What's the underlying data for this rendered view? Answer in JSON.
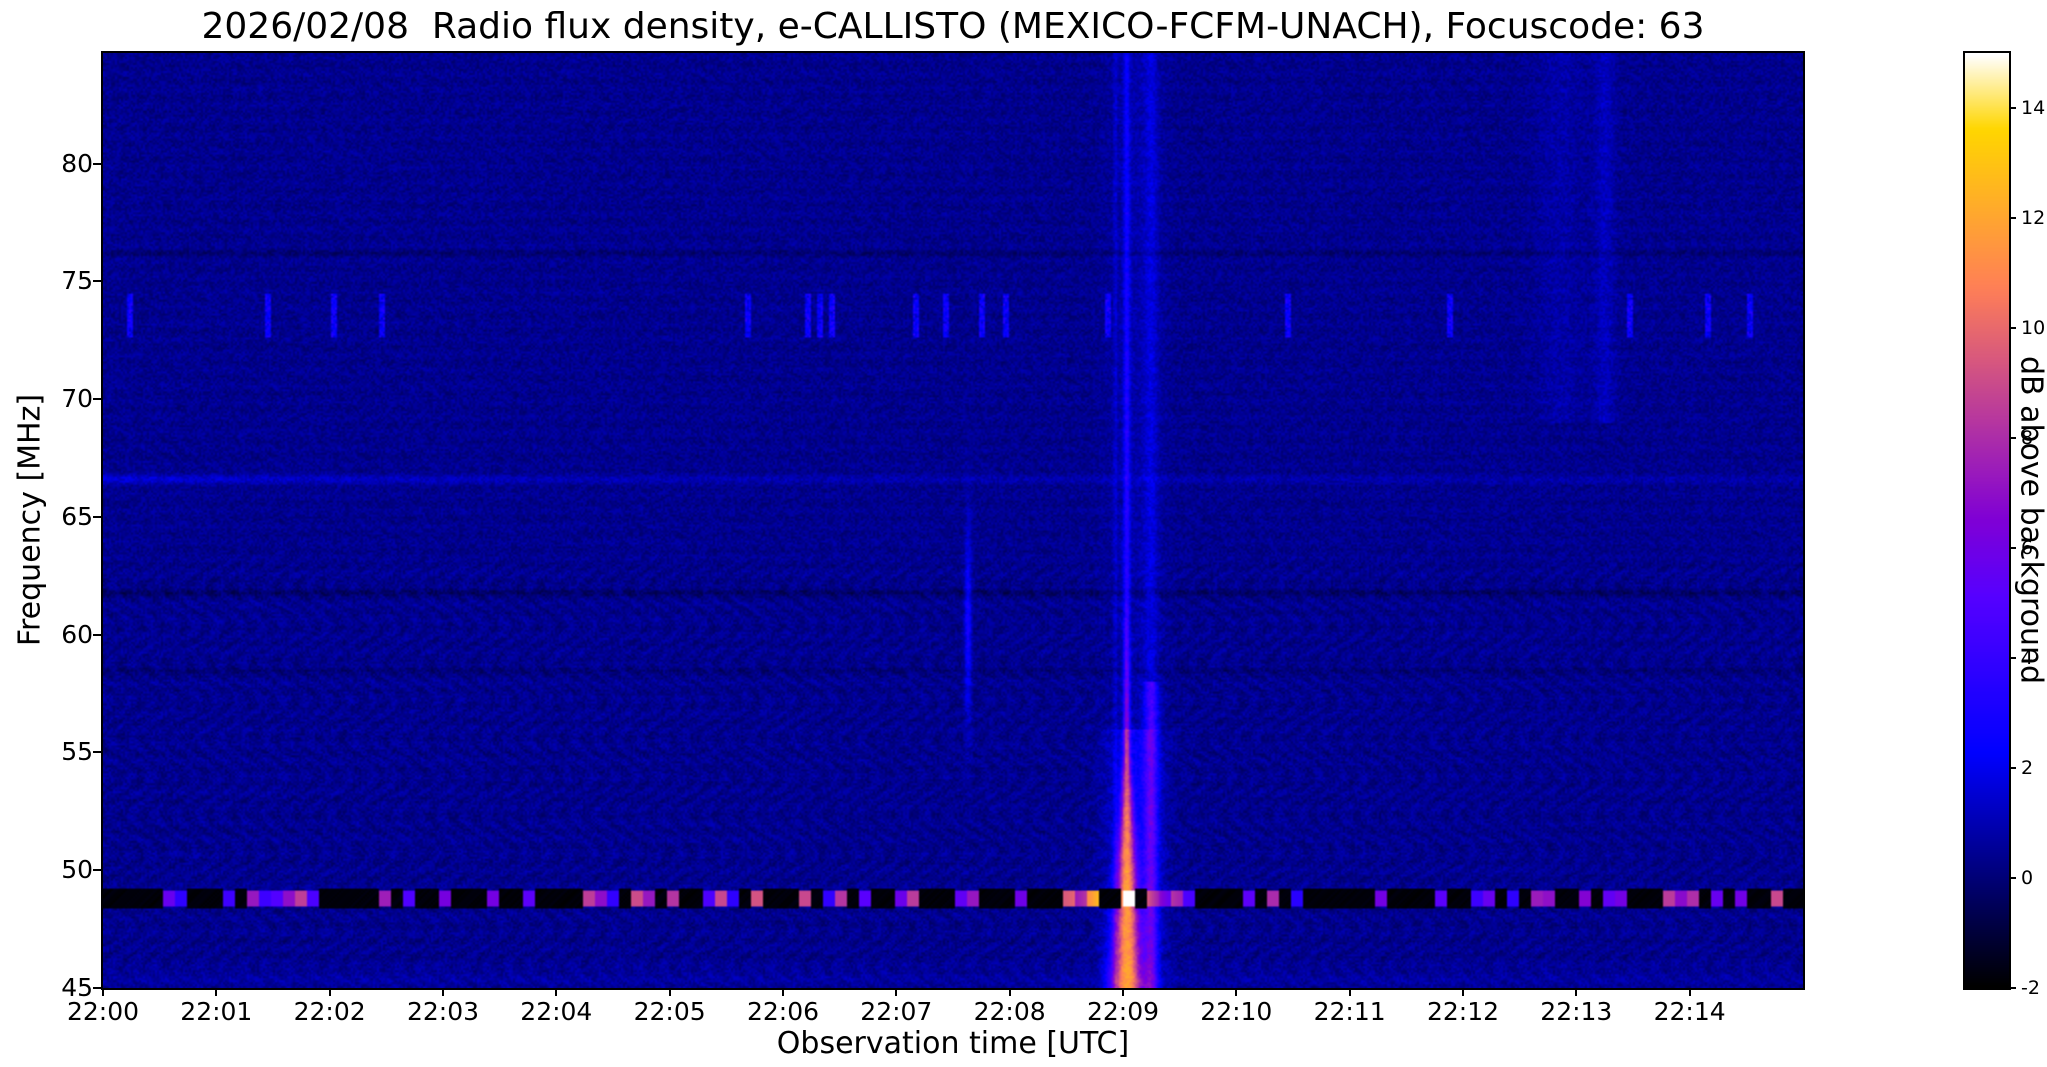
{
  "chart_data": {
    "type": "heatmap",
    "title": "2026/02/08  Radio flux density, e-CALLISTO (MEXICO-FCFM-UNACH), Focuscode: 63",
    "xlabel": "Observation time [UTC]",
    "ylabel": "Frequency [MHz]",
    "colorbar_label": "dB above background",
    "colormap": "gnuplot2",
    "x_start_utc": "22:00:00",
    "x_end_utc": "22:15:00",
    "x_ticks": [
      "22:00",
      "22:01",
      "22:02",
      "22:03",
      "22:04",
      "22:05",
      "22:06",
      "22:07",
      "22:08",
      "22:09",
      "22:10",
      "22:11",
      "22:12",
      "22:13",
      "22:14"
    ],
    "y_ticks": [
      45,
      50,
      55,
      60,
      65,
      70,
      75,
      80
    ],
    "freq_range_mhz": [
      45,
      84.7
    ],
    "value_range_db": [
      -2,
      15
    ],
    "colorbar_ticks": [
      -2,
      0,
      2,
      4,
      6,
      8,
      10,
      12,
      14
    ],
    "background_db": 0.3,
    "features": [
      {
        "name": "rfi-channel",
        "kind": "horizontal-dashed-line",
        "freq_mhz": 48.8,
        "width_mhz": 0.8,
        "dark_db": -2,
        "bright_db_range": [
          3.5,
          10
        ],
        "note": "intermittent channel: black dropouts alternating with bright orange bursts across the full time axis"
      },
      {
        "name": "solar-radio-burst",
        "kind": "vertical-burst",
        "time_utc": "22:09:02",
        "freq_span_mhz": [
          45,
          78
        ],
        "peak_db_at_45mhz": 10,
        "peak_db_at_70mhz": 2.5,
        "note": "strong narrow column, brightest (orange/pink) below 52 MHz, fading to blue above 65 MHz"
      },
      {
        "name": "secondary-burst",
        "kind": "vertical-burst",
        "time_utc": "22:09:15",
        "freq_span_mhz": [
          45,
          60
        ],
        "peak_db": 4,
        "note": "weaker pink/blue tail just after the main burst"
      },
      {
        "name": "weak-burst",
        "kind": "vertical-burst",
        "time_utc": "22:07:38",
        "freq_span_mhz": [
          56,
          66
        ],
        "peak_db": 2.6,
        "note": "faint narrow blue streak"
      },
      {
        "name": "carrier-band",
        "kind": "horizontal-band",
        "freq_mhz": 66.6,
        "level_db": 1.3,
        "note": "faint brighter horizontal line, strongest near 22:00-22:03"
      },
      {
        "name": "intermittent-rfi",
        "kind": "speckles",
        "freq_span_mhz": [
          72.6,
          74.5
        ],
        "level_db": 2.5,
        "note": "small periodic bright dots near 73-74 MHz"
      },
      {
        "name": "faint-streaks",
        "kind": "vertical-streaks",
        "time_utc": "22:13:15",
        "freq_span_mhz": [
          69,
          84.7
        ],
        "level_db": 1,
        "note": "faint lighter-blue vertical smudges top right"
      }
    ]
  }
}
